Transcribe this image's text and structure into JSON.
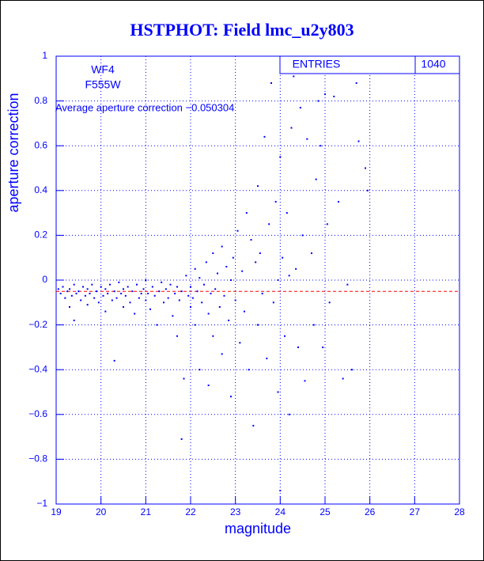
{
  "chart_data": {
    "type": "scatter",
    "title": "HSTPHOT: Field lmc_u2y803",
    "x_label": "magnitude",
    "y_label": "aperture correction",
    "annotations": [
      "WF4",
      "F555W"
    ],
    "average_label": "Average aperture correction −0.050304",
    "average_line": -0.050304,
    "average_color": "#ff0000",
    "stats": {
      "label": "ENTRIES",
      "value": 1040
    },
    "color": "#0000ff",
    "grid": true,
    "xlim": [
      19,
      28
    ],
    "xticks": [
      19,
      20,
      21,
      22,
      23,
      24,
      25,
      26,
      27,
      28
    ],
    "ylim": [
      -1,
      1
    ],
    "yticks": [
      {
        "value": -1,
        "label": "−1"
      },
      {
        "value": -0.8,
        "label": "−0.8"
      },
      {
        "value": -0.6,
        "label": "−0.6"
      },
      {
        "value": -0.4,
        "label": "−0.4"
      },
      {
        "value": -0.2,
        "label": "−0.2"
      },
      0,
      0.2,
      0.4,
      0.6,
      0.8,
      1
    ],
    "x": [
      19.05,
      19.1,
      19.15,
      19.2,
      19.25,
      19.3,
      19.3,
      19.35,
      19.4,
      19.4,
      19.45,
      19.5,
      19.55,
      19.6,
      19.65,
      19.7,
      19.7,
      19.75,
      19.8,
      19.85,
      19.9,
      19.95,
      20.0,
      20.05,
      20.1,
      20.1,
      20.15,
      20.2,
      20.25,
      20.3,
      20.3,
      20.35,
      20.4,
      20.45,
      20.5,
      20.5,
      20.55,
      20.6,
      20.65,
      20.7,
      20.75,
      20.8,
      20.85,
      20.9,
      20.95,
      21.0,
      21.0,
      21.05,
      21.1,
      21.15,
      21.2,
      21.25,
      21.3,
      21.35,
      21.4,
      21.45,
      21.5,
      21.55,
      21.6,
      21.65,
      21.7,
      21.7,
      21.75,
      21.8,
      21.8,
      21.85,
      21.9,
      21.95,
      22.0,
      22.0,
      22.05,
      22.1,
      22.1,
      22.15,
      22.2,
      22.2,
      22.25,
      22.3,
      22.35,
      22.4,
      22.4,
      22.45,
      22.5,
      22.5,
      22.55,
      22.6,
      22.65,
      22.7,
      22.7,
      22.75,
      22.8,
      22.85,
      22.9,
      22.9,
      22.95,
      23.0,
      23.05,
      23.1,
      23.15,
      23.2,
      23.25,
      23.3,
      23.35,
      23.4,
      23.45,
      23.5,
      23.5,
      23.55,
      23.6,
      23.65,
      23.7,
      23.75,
      23.8,
      23.85,
      23.9,
      23.95,
      24.0,
      24.0,
      24.05,
      24.1,
      24.15,
      24.2,
      24.25,
      24.3,
      24.35,
      24.4,
      24.45,
      24.5,
      24.55,
      24.6,
      24.7,
      24.75,
      24.8,
      24.85,
      24.9,
      24.95,
      25.0,
      25.05,
      25.1,
      25.2,
      25.3,
      25.4,
      25.5,
      25.7,
      25.75,
      25.9,
      25.95,
      25.6,
      24.2,
      23.95
    ],
    "values": [
      -0.04,
      -0.06,
      -0.03,
      -0.08,
      -0.05,
      -0.12,
      -0.04,
      -0.07,
      -0.02,
      -0.18,
      -0.06,
      -0.05,
      -0.09,
      -0.03,
      -0.07,
      -0.04,
      -0.11,
      -0.06,
      -0.02,
      -0.08,
      -0.05,
      -0.1,
      -0.03,
      -0.07,
      -0.04,
      -0.14,
      -0.06,
      -0.02,
      -0.09,
      -0.05,
      -0.36,
      -0.08,
      -0.01,
      -0.06,
      -0.12,
      -0.04,
      -0.07,
      -0.03,
      -0.1,
      -0.05,
      -0.15,
      -0.02,
      -0.08,
      -0.06,
      -0.04,
      0.0,
      -0.09,
      -0.06,
      -0.13,
      -0.03,
      -0.07,
      -0.2,
      -0.05,
      -0.01,
      -0.1,
      -0.04,
      -0.08,
      -0.02,
      -0.16,
      -0.06,
      -0.03,
      -0.25,
      -0.09,
      -0.05,
      -0.71,
      -0.44,
      0.02,
      -0.07,
      -0.12,
      -0.03,
      -0.08,
      0.05,
      -0.2,
      -0.05,
      -0.4,
      0.01,
      -0.1,
      -0.02,
      0.08,
      -0.15,
      -0.47,
      -0.06,
      0.12,
      -0.25,
      -0.04,
      0.03,
      -0.12,
      0.15,
      -0.33,
      -0.07,
      0.06,
      -0.18,
      0.0,
      -0.52,
      0.1,
      -0.09,
      0.22,
      -0.28,
      0.04,
      -0.14,
      0.3,
      -0.4,
      0.18,
      -0.65,
      0.08,
      -0.2,
      0.42,
      0.12,
      -0.06,
      0.64,
      -0.35,
      0.25,
      0.88,
      -0.1,
      0.35,
      -0.5,
      0.55,
      -0.94,
      0.1,
      -0.25,
      0.3,
      -0.6,
      0.68,
      0.91,
      0.05,
      -0.3,
      0.77,
      0.2,
      -0.45,
      0.63,
      0.12,
      -0.2,
      0.45,
      0.8,
      0.6,
      -0.3,
      0.83,
      0.25,
      -0.1,
      0.82,
      0.35,
      -0.44,
      -0.02,
      0.88,
      0.62,
      0.5,
      0.4,
      -0.4,
      0.02,
      0.0
    ]
  }
}
